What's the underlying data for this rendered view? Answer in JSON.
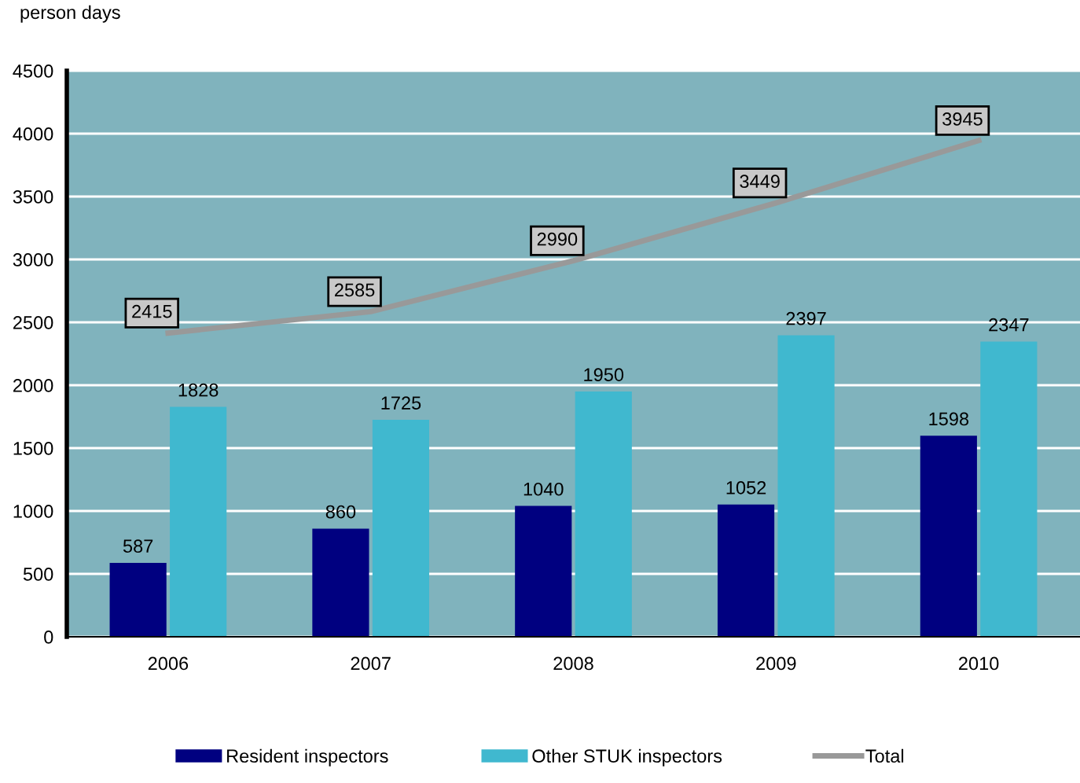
{
  "chart_data": {
    "type": "bar",
    "ylabel": "person days",
    "categories": [
      "2006",
      "2007",
      "2008",
      "2009",
      "2010"
    ],
    "series": [
      {
        "name": "Resident inspectors",
        "color": "#000080",
        "values": [
          587,
          860,
          1040,
          1052,
          1598
        ]
      },
      {
        "name": "Other STUK inspectors",
        "color": "#40b8cf",
        "values": [
          1828,
          1725,
          1950,
          2397,
          2347
        ]
      },
      {
        "name": "Total",
        "type": "line",
        "color": "#999999",
        "values": [
          2415,
          2585,
          2990,
          3449,
          3945
        ]
      }
    ],
    "ylim": [
      0,
      4500
    ],
    "yticks": [
      0,
      500,
      1000,
      1500,
      2000,
      2500,
      3000,
      3500,
      4000,
      4500
    ],
    "grid": "y",
    "legend": "bottom",
    "data_labels": true,
    "marker": "none",
    "line_style": "solid"
  }
}
